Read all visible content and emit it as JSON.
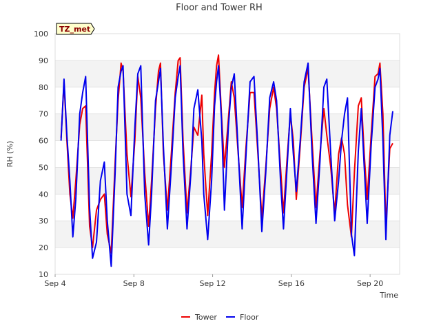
{
  "chart_data": {
    "type": "line",
    "title": "Floor and Tower RH",
    "xlabel": "Time",
    "ylabel": "RH (%)",
    "ylim": [
      10,
      100
    ],
    "yticks": [
      10,
      20,
      30,
      40,
      50,
      60,
      70,
      80,
      90,
      100
    ],
    "xlim": [
      "2023-09-04",
      "2023-09-21T12:00"
    ],
    "xticks": [
      {
        "label": "Sep 4",
        "day": 4
      },
      {
        "label": "Sep 8",
        "day": 8
      },
      {
        "label": "Sep 12",
        "day": 12
      },
      {
        "label": "Sep 16",
        "day": 16
      },
      {
        "label": "Sep 20",
        "day": 20
      }
    ],
    "station_badge": "TZ_met",
    "grid": true,
    "background_bands": "alternating light grey",
    "legend_placement": "bottom-center",
    "series": [
      {
        "name": "Tower",
        "color": "#ee0000",
        "points": [
          [
            4.3,
            61
          ],
          [
            4.45,
            82
          ],
          [
            4.6,
            60
          ],
          [
            4.75,
            40
          ],
          [
            4.9,
            31
          ],
          [
            5.05,
            45
          ],
          [
            5.25,
            66
          ],
          [
            5.4,
            72
          ],
          [
            5.55,
            73
          ],
          [
            5.75,
            28
          ],
          [
            5.9,
            20
          ],
          [
            6.1,
            34
          ],
          [
            6.3,
            38
          ],
          [
            6.5,
            40
          ],
          [
            6.65,
            25
          ],
          [
            6.85,
            18
          ],
          [
            7.05,
            52
          ],
          [
            7.2,
            75
          ],
          [
            7.35,
            89
          ],
          [
            7.45,
            86
          ],
          [
            7.65,
            55
          ],
          [
            7.85,
            39
          ],
          [
            8.05,
            60
          ],
          [
            8.2,
            84
          ],
          [
            8.35,
            76
          ],
          [
            8.55,
            48
          ],
          [
            8.75,
            28
          ],
          [
            8.9,
            45
          ],
          [
            9.1,
            72
          ],
          [
            9.25,
            86
          ],
          [
            9.35,
            89
          ],
          [
            9.5,
            55
          ],
          [
            9.7,
            34
          ],
          [
            9.9,
            55
          ],
          [
            10.1,
            78
          ],
          [
            10.25,
            90
          ],
          [
            10.35,
            91
          ],
          [
            10.5,
            60
          ],
          [
            10.7,
            33
          ],
          [
            10.9,
            50
          ],
          [
            11.05,
            65
          ],
          [
            11.25,
            62
          ],
          [
            11.45,
            77
          ],
          [
            11.55,
            55
          ],
          [
            11.75,
            32
          ],
          [
            11.95,
            55
          ],
          [
            12.1,
            78
          ],
          [
            12.2,
            88
          ],
          [
            12.3,
            92
          ],
          [
            12.45,
            70
          ],
          [
            12.6,
            50
          ],
          [
            12.8,
            68
          ],
          [
            12.95,
            82
          ],
          [
            13.1,
            76
          ],
          [
            13.3,
            55
          ],
          [
            13.5,
            35
          ],
          [
            13.7,
            58
          ],
          [
            13.9,
            78
          ],
          [
            14.1,
            78
          ],
          [
            14.3,
            55
          ],
          [
            14.5,
            31
          ],
          [
            14.7,
            50
          ],
          [
            14.9,
            72
          ],
          [
            15.1,
            80
          ],
          [
            15.25,
            72
          ],
          [
            15.45,
            50
          ],
          [
            15.6,
            33
          ],
          [
            15.8,
            55
          ],
          [
            15.95,
            70
          ],
          [
            16.1,
            60
          ],
          [
            16.25,
            38
          ],
          [
            16.45,
            58
          ],
          [
            16.65,
            80
          ],
          [
            16.85,
            87
          ],
          [
            17.05,
            60
          ],
          [
            17.25,
            35
          ],
          [
            17.45,
            55
          ],
          [
            17.65,
            72
          ],
          [
            17.8,
            62
          ],
          [
            18.0,
            50
          ],
          [
            18.2,
            33
          ],
          [
            18.4,
            55
          ],
          [
            18.55,
            61
          ],
          [
            18.7,
            55
          ],
          [
            18.85,
            36
          ],
          [
            19.05,
            24
          ],
          [
            19.2,
            48
          ],
          [
            19.4,
            73
          ],
          [
            19.55,
            76
          ],
          [
            19.7,
            55
          ],
          [
            19.85,
            38
          ],
          [
            20.05,
            62
          ],
          [
            20.25,
            84
          ],
          [
            20.4,
            85
          ],
          [
            20.5,
            89
          ],
          [
            20.65,
            70
          ],
          [
            20.8,
            28
          ],
          [
            21.0,
            57
          ],
          [
            21.15,
            59
          ]
        ]
      },
      {
        "name": "Floor",
        "color": "#0000ee",
        "points": [
          [
            4.3,
            60
          ],
          [
            4.45,
            83
          ],
          [
            4.6,
            62
          ],
          [
            4.75,
            45
          ],
          [
            4.9,
            24
          ],
          [
            5.05,
            38
          ],
          [
            5.25,
            70
          ],
          [
            5.4,
            78
          ],
          [
            5.55,
            84
          ],
          [
            5.75,
            35
          ],
          [
            5.9,
            16
          ],
          [
            6.1,
            22
          ],
          [
            6.3,
            45
          ],
          [
            6.5,
            52
          ],
          [
            6.65,
            30
          ],
          [
            6.85,
            13
          ],
          [
            7.05,
            48
          ],
          [
            7.2,
            80
          ],
          [
            7.35,
            86
          ],
          [
            7.45,
            88
          ],
          [
            7.65,
            40
          ],
          [
            7.85,
            32
          ],
          [
            8.05,
            65
          ],
          [
            8.2,
            85
          ],
          [
            8.35,
            88
          ],
          [
            8.55,
            40
          ],
          [
            8.75,
            21
          ],
          [
            8.9,
            40
          ],
          [
            9.1,
            75
          ],
          [
            9.25,
            82
          ],
          [
            9.35,
            87
          ],
          [
            9.5,
            58
          ],
          [
            9.7,
            27
          ],
          [
            9.9,
            50
          ],
          [
            10.1,
            76
          ],
          [
            10.25,
            84
          ],
          [
            10.35,
            88
          ],
          [
            10.5,
            55
          ],
          [
            10.7,
            27
          ],
          [
            10.9,
            48
          ],
          [
            11.05,
            72
          ],
          [
            11.25,
            79
          ],
          [
            11.45,
            60
          ],
          [
            11.55,
            40
          ],
          [
            11.75,
            23
          ],
          [
            11.95,
            45
          ],
          [
            12.1,
            73
          ],
          [
            12.2,
            82
          ],
          [
            12.3,
            88
          ],
          [
            12.45,
            68
          ],
          [
            12.6,
            34
          ],
          [
            12.8,
            65
          ],
          [
            12.95,
            80
          ],
          [
            13.1,
            85
          ],
          [
            13.3,
            56
          ],
          [
            13.5,
            27
          ],
          [
            13.7,
            55
          ],
          [
            13.9,
            82
          ],
          [
            14.1,
            84
          ],
          [
            14.3,
            57
          ],
          [
            14.5,
            26
          ],
          [
            14.7,
            48
          ],
          [
            14.9,
            76
          ],
          [
            15.1,
            82
          ],
          [
            15.25,
            75
          ],
          [
            15.45,
            45
          ],
          [
            15.6,
            27
          ],
          [
            15.8,
            52
          ],
          [
            15.95,
            72
          ],
          [
            16.1,
            55
          ],
          [
            16.25,
            41
          ],
          [
            16.45,
            60
          ],
          [
            16.65,
            82
          ],
          [
            16.85,
            89
          ],
          [
            17.05,
            55
          ],
          [
            17.25,
            29
          ],
          [
            17.45,
            52
          ],
          [
            17.65,
            80
          ],
          [
            17.8,
            83
          ],
          [
            18.0,
            55
          ],
          [
            18.2,
            30
          ],
          [
            18.4,
            45
          ],
          [
            18.55,
            60
          ],
          [
            18.7,
            70
          ],
          [
            18.85,
            76
          ],
          [
            19.05,
            25
          ],
          [
            19.2,
            17
          ],
          [
            19.4,
            56
          ],
          [
            19.55,
            72
          ],
          [
            19.7,
            50
          ],
          [
            19.85,
            29
          ],
          [
            20.05,
            58
          ],
          [
            20.25,
            80
          ],
          [
            20.4,
            83
          ],
          [
            20.5,
            87
          ],
          [
            20.65,
            60
          ],
          [
            20.8,
            23
          ],
          [
            21.0,
            62
          ],
          [
            21.15,
            71
          ]
        ]
      }
    ]
  }
}
